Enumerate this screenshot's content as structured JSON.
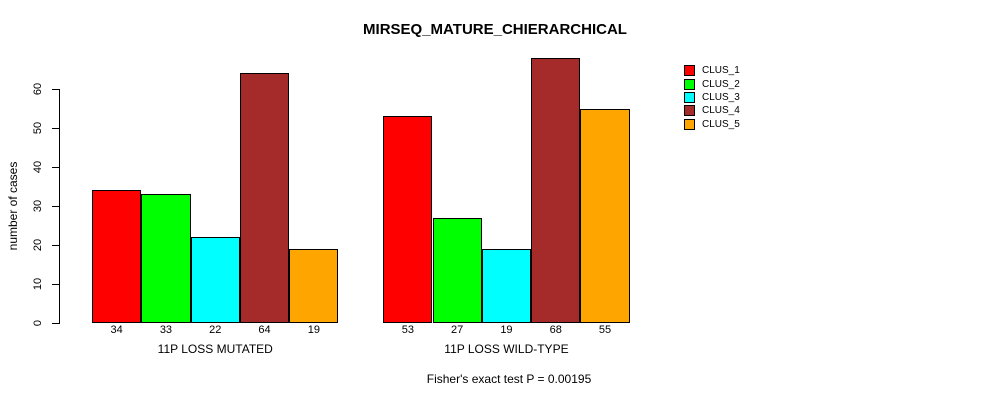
{
  "chart_data": {
    "type": "bar",
    "title": "MIRSEQ_MATURE_CHIERARCHICAL",
    "xlabel": "",
    "ylabel": "number of cases",
    "ylim": [
      0,
      60
    ],
    "yticks": [
      0,
      10,
      20,
      30,
      40,
      50,
      60
    ],
    "grid": false,
    "legend_position": "right",
    "bar_border_color": "#000000",
    "series": [
      {
        "name": "CLUS_1",
        "color": "#FF0000"
      },
      {
        "name": "CLUS_2",
        "color": "#00FF00"
      },
      {
        "name": "CLUS_3",
        "color": "#00FFFF"
      },
      {
        "name": "CLUS_4",
        "color": "#A52A2A"
      },
      {
        "name": "CLUS_5",
        "color": "#FFA500"
      }
    ],
    "groups": [
      {
        "label": "11P LOSS MUTATED",
        "values": [
          34,
          33,
          22,
          64,
          19
        ]
      },
      {
        "label": "11P LOSS WILD-TYPE",
        "values": [
          53,
          27,
          19,
          68,
          55
        ]
      }
    ],
    "annotation": "Fisher's exact test P = 0.00195"
  }
}
